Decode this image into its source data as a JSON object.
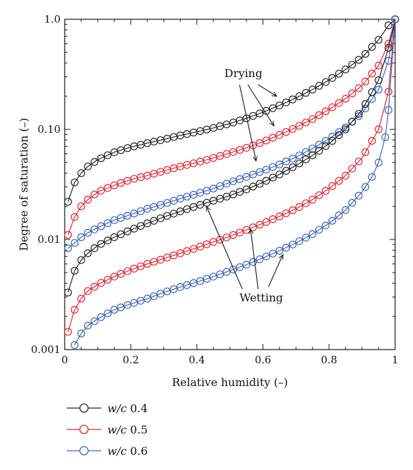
{
  "chart_data": {
    "type": "scatter",
    "xlabel": "Relative humidity (–)",
    "ylabel": "Degree of saturation (–)",
    "xlim": [
      0,
      1
    ],
    "ylim": [
      0.001,
      1
    ],
    "yscale": "log",
    "grid": false,
    "x_ticks": [
      "0",
      "0.2",
      "0.4",
      "0.6",
      "0.8",
      "1"
    ],
    "y_ticks": [
      "0.001",
      "0.01",
      "0.10",
      "1.0"
    ],
    "legend_position": "bottom-left",
    "legend": [
      {
        "prefix": "w/c",
        "value": "0.4",
        "color": "#222222"
      },
      {
        "prefix": "w/c",
        "value": "0.5",
        "color": "#e0262e"
      },
      {
        "prefix": "w/c",
        "value": "0.6",
        "color": "#3a62b5"
      }
    ],
    "annotations": [
      "Drying",
      "Wetting"
    ],
    "series": [
      {
        "group": "0",
        "branch": "drying",
        "color": "#222222",
        "points": [
          [
            0.01,
            0.022
          ],
          [
            0.03,
            0.033
          ],
          [
            0.05,
            0.04
          ],
          [
            0.07,
            0.046
          ],
          [
            0.1,
            0.053
          ],
          [
            0.15,
            0.062
          ],
          [
            0.2,
            0.069
          ],
          [
            0.25,
            0.075
          ],
          [
            0.3,
            0.081
          ],
          [
            0.35,
            0.088
          ],
          [
            0.4,
            0.095
          ],
          [
            0.45,
            0.103
          ],
          [
            0.5,
            0.113
          ],
          [
            0.55,
            0.126
          ],
          [
            0.6,
            0.143
          ],
          [
            0.65,
            0.165
          ],
          [
            0.7,
            0.193
          ],
          [
            0.75,
            0.23
          ],
          [
            0.8,
            0.28
          ],
          [
            0.85,
            0.35
          ],
          [
            0.9,
            0.45
          ],
          [
            0.95,
            0.65
          ],
          [
            0.98,
            0.88
          ],
          [
            1.0,
            1.0
          ]
        ]
      },
      {
        "group": "1",
        "branch": "drying",
        "color": "#e0262e",
        "points": [
          [
            0.01,
            0.011
          ],
          [
            0.03,
            0.016
          ],
          [
            0.05,
            0.02
          ],
          [
            0.07,
            0.023
          ],
          [
            0.1,
            0.027
          ],
          [
            0.15,
            0.031
          ],
          [
            0.2,
            0.035
          ],
          [
            0.25,
            0.038
          ],
          [
            0.3,
            0.042
          ],
          [
            0.35,
            0.046
          ],
          [
            0.4,
            0.05
          ],
          [
            0.45,
            0.055
          ],
          [
            0.5,
            0.061
          ],
          [
            0.55,
            0.068
          ],
          [
            0.6,
            0.077
          ],
          [
            0.65,
            0.089
          ],
          [
            0.7,
            0.104
          ],
          [
            0.75,
            0.124
          ],
          [
            0.8,
            0.152
          ],
          [
            0.85,
            0.19
          ],
          [
            0.9,
            0.25
          ],
          [
            0.95,
            0.38
          ],
          [
            0.98,
            0.6
          ],
          [
            1.0,
            1.0
          ]
        ]
      },
      {
        "group": "2",
        "branch": "drying",
        "color": "#3a62b5",
        "points": [
          [
            0.01,
            0.0083
          ],
          [
            0.03,
            0.0093
          ],
          [
            0.05,
            0.0105
          ],
          [
            0.07,
            0.0115
          ],
          [
            0.1,
            0.0128
          ],
          [
            0.15,
            0.015
          ],
          [
            0.2,
            0.0168
          ],
          [
            0.25,
            0.019
          ],
          [
            0.3,
            0.021
          ],
          [
            0.35,
            0.0235
          ],
          [
            0.4,
            0.026
          ],
          [
            0.45,
            0.029
          ],
          [
            0.5,
            0.033
          ],
          [
            0.55,
            0.037
          ],
          [
            0.6,
            0.042
          ],
          [
            0.65,
            0.048
          ],
          [
            0.7,
            0.056
          ],
          [
            0.75,
            0.067
          ],
          [
            0.8,
            0.082
          ],
          [
            0.85,
            0.104
          ],
          [
            0.9,
            0.14
          ],
          [
            0.95,
            0.23
          ],
          [
            0.98,
            0.42
          ],
          [
            1.0,
            1.0
          ]
        ]
      },
      {
        "group": "0",
        "branch": "wetting",
        "color": "#222222",
        "points": [
          [
            0.01,
            0.0033
          ],
          [
            0.03,
            0.0052
          ],
          [
            0.05,
            0.0065
          ],
          [
            0.07,
            0.0075
          ],
          [
            0.1,
            0.0088
          ],
          [
            0.15,
            0.0105
          ],
          [
            0.2,
            0.0122
          ],
          [
            0.25,
            0.014
          ],
          [
            0.3,
            0.016
          ],
          [
            0.35,
            0.018
          ],
          [
            0.4,
            0.0202
          ],
          [
            0.45,
            0.0225
          ],
          [
            0.5,
            0.025
          ],
          [
            0.55,
            0.0285
          ],
          [
            0.6,
            0.033
          ],
          [
            0.65,
            0.039
          ],
          [
            0.7,
            0.047
          ],
          [
            0.75,
            0.058
          ],
          [
            0.8,
            0.074
          ],
          [
            0.85,
            0.1
          ],
          [
            0.9,
            0.15
          ],
          [
            0.95,
            0.28
          ],
          [
            0.98,
            0.55
          ],
          [
            1.0,
            1.0
          ]
        ]
      },
      {
        "group": "1",
        "branch": "wetting",
        "color": "#e0262e",
        "points": [
          [
            0.01,
            0.00145
          ],
          [
            0.03,
            0.0023
          ],
          [
            0.05,
            0.0029
          ],
          [
            0.07,
            0.0034
          ],
          [
            0.1,
            0.0039
          ],
          [
            0.15,
            0.0046
          ],
          [
            0.2,
            0.0053
          ],
          [
            0.25,
            0.006
          ],
          [
            0.3,
            0.0067
          ],
          [
            0.35,
            0.0075
          ],
          [
            0.4,
            0.0084
          ],
          [
            0.45,
            0.0095
          ],
          [
            0.5,
            0.0107
          ],
          [
            0.55,
            0.0122
          ],
          [
            0.6,
            0.014
          ],
          [
            0.65,
            0.0162
          ],
          [
            0.7,
            0.019
          ],
          [
            0.75,
            0.023
          ],
          [
            0.8,
            0.029
          ],
          [
            0.85,
            0.038
          ],
          [
            0.9,
            0.055
          ],
          [
            0.95,
            0.1
          ],
          [
            0.98,
            0.22
          ],
          [
            1.0,
            1.0
          ]
        ]
      },
      {
        "group": "2",
        "branch": "wetting",
        "color": "#3a62b5",
        "points": [
          [
            0.03,
            0.0011
          ],
          [
            0.05,
            0.0014
          ],
          [
            0.07,
            0.00165
          ],
          [
            0.1,
            0.0019
          ],
          [
            0.15,
            0.0023
          ],
          [
            0.2,
            0.0026
          ],
          [
            0.25,
            0.0029
          ],
          [
            0.3,
            0.0033
          ],
          [
            0.35,
            0.0037
          ],
          [
            0.4,
            0.0041
          ],
          [
            0.45,
            0.0046
          ],
          [
            0.5,
            0.0052
          ],
          [
            0.55,
            0.0059
          ],
          [
            0.6,
            0.0068
          ],
          [
            0.65,
            0.0079
          ],
          [
            0.7,
            0.0093
          ],
          [
            0.75,
            0.0112
          ],
          [
            0.8,
            0.014
          ],
          [
            0.85,
            0.0185
          ],
          [
            0.9,
            0.027
          ],
          [
            0.93,
            0.037
          ],
          [
            0.95,
            0.05
          ],
          [
            0.97,
            0.085
          ],
          [
            0.98,
            0.15
          ],
          [
            1.0,
            1.0
          ]
        ]
      }
    ]
  }
}
